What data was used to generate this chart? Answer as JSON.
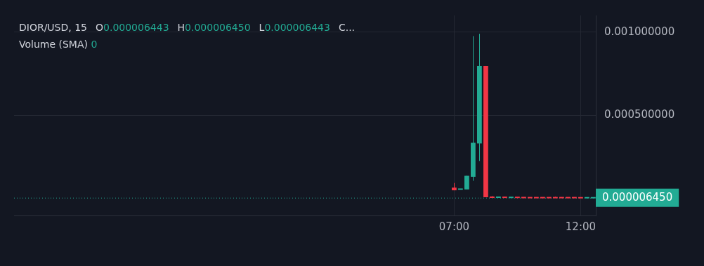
{
  "chart_data": {
    "type": "candlestick",
    "title": "DIOR/USD, 15",
    "annotations": [
      "O0.000006443",
      "H0.000006450",
      "L0.000006443",
      "C...",
      "Volume (SMA) 0"
    ],
    "x": [
      7,
      7.25,
      7.5,
      7.75,
      8,
      8.25,
      8.5,
      8.75,
      9,
      9.25,
      9.5,
      9.75,
      10,
      10.25,
      10.5,
      10.75,
      11,
      11.25,
      11.5,
      11.75,
      12,
      12.25,
      12.5
    ],
    "ohlc": [
      [
        6.7e-05,
        9.5e-05,
        5.1e-05,
        5.1e-05
      ],
      [
        5.8e-05,
        5.8e-05,
        5.8e-05,
        5.8e-05
      ],
      [
        5.6e-05,
        0.000138,
        5.6e-05,
        0.000138
      ],
      [
        0.000132,
        0.000976,
        0.000108,
        0.000336
      ],
      [
        0.000332,
        0.00099,
        0.000227,
        0.000797
      ],
      [
        0.000797,
        0.000797,
        1e-05,
        1e-05
      ],
      [
        1e-05,
        1.6e-05,
        9e-06,
        9e-06
      ],
      [
        9e-06,
        1e-05,
        8e-06,
        1e-05
      ],
      [
        1e-05,
        1e-05,
        8e-06,
        8e-06
      ],
      [
        8e-06,
        9e-06,
        8e-06,
        9e-06
      ],
      [
        9e-06,
        9e-06,
        8e-06,
        8e-06
      ],
      [
        8e-06,
        8e-06,
        7e-06,
        7e-06
      ],
      [
        7e-06,
        8e-06,
        7e-06,
        7e-06
      ],
      [
        7e-06,
        7e-06,
        7e-06,
        7e-06
      ],
      [
        7e-06,
        7e-06,
        7e-06,
        7e-06
      ],
      [
        7e-06,
        7e-06,
        7e-06,
        7e-06
      ],
      [
        7e-06,
        1.2e-05,
        7e-06,
        7e-06
      ],
      [
        7e-06,
        7e-06,
        7e-06,
        7e-06
      ],
      [
        7e-06,
        7e-06,
        7e-06,
        7e-06
      ],
      [
        7e-06,
        7e-06,
        7e-06,
        7e-06
      ],
      [
        7e-06,
        7e-06,
        6e-06,
        6e-06
      ],
      [
        6e-06,
        7e-06,
        6e-06,
        7e-06
      ],
      [
        6.443e-06,
        6.45e-06,
        6.443e-06,
        6.45e-06
      ]
    ],
    "colors": [
      "#f23645",
      "#22ab94",
      "#22ab94",
      "#22ab94",
      "#22ab94",
      "#f23645",
      "#f23645",
      "#22ab94",
      "#f23645",
      "#22ab94",
      "#f23645",
      "#f23645",
      "#f23645",
      "#f23645",
      "#f23645",
      "#f23645",
      "#f23645",
      "#f23645",
      "#f23645",
      "#f23645",
      "#f23645",
      "#22ab94",
      "#22ab94"
    ],
    "xlim": [
      -10.4,
      12.6
    ],
    "xticks": [
      {
        "value": 7,
        "label": "07:00"
      },
      {
        "value": 12,
        "label": "12:00"
      }
    ],
    "ylim": [
      -0.0001,
      0.0011
    ],
    "yticks": [
      {
        "value": 0.0005,
        "label": "0.000500000"
      },
      {
        "value": 0.001,
        "label": "0.001000000"
      }
    ],
    "ref_lines": [
      {
        "axis": "y",
        "value": 6.45e-06,
        "label": "0.000006450",
        "color": "#22ab94",
        "line_style": "dotted"
      }
    ],
    "grid": true
  }
}
